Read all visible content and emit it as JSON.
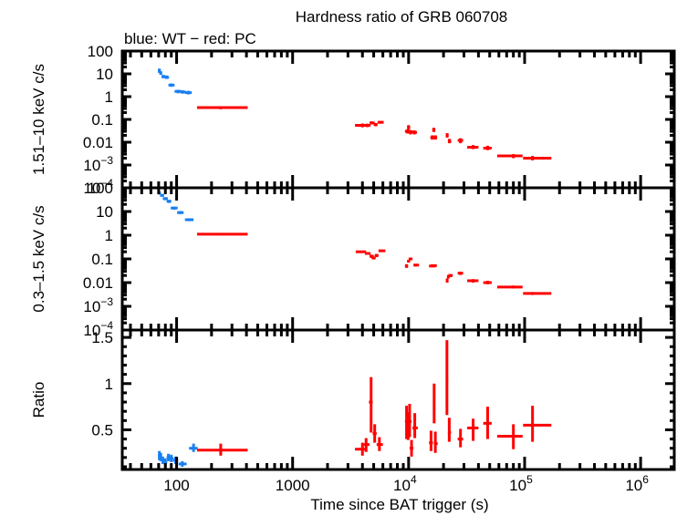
{
  "chart_data": {
    "type": "scatter",
    "title": "Hardness ratio of GRB 060708",
    "subtitle": "blue: WT − red: PC",
    "xlabel": "Time since BAT trigger (s)",
    "xscale": "log",
    "xlim": [
      34,
      1950000
    ],
    "xticks": [
      {
        "value": 100,
        "label": "100"
      },
      {
        "value": 1000,
        "label": "1000"
      },
      {
        "value": 10000,
        "label": "10",
        "sup": "4"
      },
      {
        "value": 100000,
        "label": "10",
        "sup": "5"
      },
      {
        "value": 1000000,
        "label": "10",
        "sup": "6"
      }
    ],
    "colors": {
      "WT": "#1a80f0",
      "PC": "#ff0000",
      "axes": "#000000"
    },
    "panels": [
      {
        "id": "hard",
        "ylabel": "1.51–10 keV c/s",
        "yscale": "log",
        "ylim": [
          0.0001,
          100
        ],
        "yticks": [
          {
            "value": 100,
            "label": "100"
          },
          {
            "value": 10,
            "label": "10"
          },
          {
            "value": 1,
            "label": "1"
          },
          {
            "value": 0.1,
            "label": "0.1"
          },
          {
            "value": 0.01,
            "label": "0.01"
          },
          {
            "value": 0.001,
            "label": "10",
            "sup": "−3"
          },
          {
            "value": 0.0001,
            "label": "10",
            "sup": "−4"
          }
        ],
        "series": [
          {
            "name": "WT",
            "points": [
              [
                71,
                14,
                69,
                73,
                11,
                17
              ],
              [
                73,
                11,
                71,
                75,
                9,
                13
              ],
              [
                77,
                7.5,
                74,
                80,
                6.5,
                9
              ],
              [
                82,
                7,
                79,
                86,
                6,
                8.5
              ],
              [
                90,
                3.2,
                85,
                96,
                2.7,
                3.8
              ],
              [
                103,
                1.7,
                96,
                110,
                1.4,
                2.0
              ],
              [
                113,
                1.6,
                108,
                120,
                1.35,
                1.9
              ],
              [
                126,
                1.5,
                118,
                135,
                1.25,
                1.8
              ]
            ]
          },
          {
            "name": "PC",
            "points": [
              [
                240,
                0.33,
                150,
                410,
                0.28,
                0.38
              ],
              [
                4000,
                0.055,
                3450,
                4300,
                0.045,
                0.066
              ],
              [
                4400,
                0.055,
                4200,
                4700,
                0.046,
                0.065
              ],
              [
                4800,
                0.07,
                4600,
                5100,
                0.06,
                0.082
              ],
              [
                5200,
                0.06,
                5000,
                5400,
                0.05,
                0.07
              ],
              [
                5700,
                0.075,
                5400,
                6100,
                0.065,
                0.085
              ],
              [
                9800,
                0.03,
                9300,
                10300,
                0.024,
                0.037
              ],
              [
                10000,
                0.045,
                9700,
                10300,
                0.036,
                0.056
              ],
              [
                10400,
                0.028,
                10000,
                11000,
                0.022,
                0.034
              ],
              [
                11200,
                0.027,
                10800,
                11800,
                0.022,
                0.033
              ],
              [
                16000,
                0.016,
                15400,
                16600,
                0.013,
                0.02
              ],
              [
                16500,
                0.035,
                16000,
                17000,
                0.028,
                0.043
              ],
              [
                17000,
                0.016,
                16500,
                17600,
                0.013,
                0.02
              ],
              [
                21500,
                0.02,
                20900,
                22100,
                0.016,
                0.025
              ],
              [
                22500,
                0.011,
                21800,
                23300,
                0.009,
                0.014
              ],
              [
                28000,
                0.012,
                26500,
                29500,
                0.009,
                0.015
              ],
              [
                36000,
                0.006,
                32000,
                40000,
                0.005,
                0.0075
              ],
              [
                48000,
                0.0055,
                44000,
                52000,
                0.0045,
                0.007
              ],
              [
                80000,
                0.0025,
                58000,
                96000,
                0.002,
                0.003
              ],
              [
                117000,
                0.002,
                97000,
                170000,
                0.0016,
                0.0025
              ]
            ]
          }
        ]
      },
      {
        "id": "soft",
        "ylabel": "0.3–1.5 keV c/s",
        "yscale": "log",
        "ylim": [
          0.0001,
          100
        ],
        "yticks": [
          {
            "value": 100,
            "label": "100"
          },
          {
            "value": 10,
            "label": "10"
          },
          {
            "value": 1,
            "label": "1"
          },
          {
            "value": 0.1,
            "label": "0.1"
          },
          {
            "value": 0.01,
            "label": "0.01"
          },
          {
            "value": 0.001,
            "label": "10",
            "sup": "−3"
          },
          {
            "value": 0.0001,
            "label": "10",
            "sup": "−4"
          }
        ],
        "series": [
          {
            "name": "WT",
            "points": [
              [
                71,
                60,
                69,
                73,
                52,
                70
              ],
              [
                75,
                48,
                72,
                78,
                42,
                55
              ],
              [
                80,
                35,
                76,
                84,
                30,
                40
              ],
              [
                86,
                27,
                82,
                90,
                23,
                31
              ],
              [
                95,
                14,
                89,
                102,
                12,
                16
              ],
              [
                108,
                9,
                101,
                115,
                7.8,
                10.5
              ],
              [
                128,
                4.5,
                118,
                140,
                3.9,
                5.2
              ]
            ]
          },
          {
            "name": "PC",
            "points": [
              [
                240,
                1.1,
                150,
                410,
                1.0,
                1.25
              ],
              [
                4000,
                0.2,
                3500,
                4300,
                0.18,
                0.22
              ],
              [
                4400,
                0.17,
                4200,
                4700,
                0.15,
                0.19
              ],
              [
                4800,
                0.13,
                4600,
                5000,
                0.11,
                0.15
              ],
              [
                5000,
                0.11,
                4800,
                5200,
                0.095,
                0.125
              ],
              [
                5300,
                0.14,
                5100,
                5500,
                0.12,
                0.16
              ],
              [
                5800,
                0.22,
                5500,
                6300,
                0.2,
                0.24
              ],
              [
                9600,
                0.05,
                9300,
                9900,
                0.042,
                0.06
              ],
              [
                10000,
                0.08,
                9700,
                10300,
                0.07,
                0.09
              ],
              [
                10400,
                0.1,
                10000,
                10800,
                0.09,
                0.11
              ],
              [
                11500,
                0.055,
                11000,
                12300,
                0.048,
                0.062
              ],
              [
                16000,
                0.05,
                15000,
                17000,
                0.045,
                0.055
              ],
              [
                16500,
                0.052,
                15500,
                17500,
                0.047,
                0.057
              ],
              [
                21500,
                0.012,
                21000,
                22000,
                0.01,
                0.015
              ],
              [
                22000,
                0.018,
                21500,
                22500,
                0.015,
                0.021
              ],
              [
                23000,
                0.02,
                22000,
                24000,
                0.017,
                0.023
              ],
              [
                28000,
                0.025,
                26500,
                29500,
                0.021,
                0.029
              ],
              [
                36000,
                0.012,
                32000,
                40000,
                0.01,
                0.014
              ],
              [
                48000,
                0.01,
                44000,
                52000,
                0.0085,
                0.012
              ],
              [
                80000,
                0.0065,
                58000,
                96000,
                0.0057,
                0.0075
              ],
              [
                117000,
                0.0035,
                97000,
                170000,
                0.003,
                0.004
              ]
            ]
          }
        ]
      },
      {
        "id": "ratio",
        "ylabel": "Ratio",
        "yscale": "linear",
        "ylim": [
          0.07,
          1.58
        ],
        "yticks": [
          {
            "value": 1.5,
            "label": "1.5"
          },
          {
            "value": 1,
            "label": "1"
          },
          {
            "value": 0.5,
            "label": "0.5"
          }
        ],
        "series": [
          {
            "name": "WT",
            "points": [
              [
                71,
                0.22,
                69,
                73,
                0.17,
                0.27
              ],
              [
                73,
                0.2,
                71,
                75,
                0.16,
                0.25
              ],
              [
                76,
                0.17,
                74,
                79,
                0.13,
                0.21
              ],
              [
                80,
                0.15,
                77,
                83,
                0.11,
                0.19
              ],
              [
                85,
                0.2,
                82,
                89,
                0.16,
                0.24
              ],
              [
                90,
                0.19,
                86,
                94,
                0.15,
                0.23
              ],
              [
                98,
                0.17,
                93,
                103,
                0.13,
                0.21
              ],
              [
                112,
                0.13,
                104,
                122,
                0.1,
                0.16
              ],
              [
                140,
                0.3,
                128,
                152,
                0.26,
                0.35
              ]
            ]
          },
          {
            "name": "PC",
            "points": [
              [
                240,
                0.28,
                150,
                410,
                0.22,
                0.35
              ],
              [
                4000,
                0.29,
                3450,
                4300,
                0.22,
                0.36
              ],
              [
                4300,
                0.34,
                4100,
                4600,
                0.26,
                0.41
              ],
              [
                4750,
                0.8,
                4550,
                4900,
                0.47,
                1.07
              ],
              [
                5100,
                0.46,
                4900,
                5300,
                0.36,
                0.56
              ],
              [
                5600,
                0.34,
                5300,
                6000,
                0.27,
                0.42
              ],
              [
                9600,
                0.59,
                9300,
                9900,
                0.4,
                0.76
              ],
              [
                9900,
                0.52,
                9600,
                10200,
                0.39,
                0.69
              ],
              [
                10200,
                0.59,
                9900,
                10600,
                0.42,
                0.78
              ],
              [
                10600,
                0.3,
                10200,
                11000,
                0.21,
                0.39
              ],
              [
                11300,
                0.52,
                10800,
                12000,
                0.41,
                0.68
              ],
              [
                15600,
                0.36,
                15000,
                16200,
                0.27,
                0.49
              ],
              [
                16600,
                0.85,
                16200,
                17000,
                0.57,
                1.0
              ],
              [
                17000,
                0.35,
                16500,
                17800,
                0.25,
                0.48
              ],
              [
                21400,
                1.04,
                21000,
                21900,
                0.66,
                1.47
              ],
              [
                22400,
                0.47,
                21800,
                23200,
                0.37,
                0.63
              ],
              [
                28000,
                0.4,
                26500,
                29500,
                0.31,
                0.51
              ],
              [
                36000,
                0.52,
                32000,
                40000,
                0.38,
                0.62
              ],
              [
                48000,
                0.57,
                44000,
                52000,
                0.4,
                0.75
              ],
              [
                80000,
                0.43,
                58000,
                96000,
                0.29,
                0.56
              ],
              [
                117000,
                0.55,
                97000,
                170000,
                0.37,
                0.76
              ]
            ]
          }
        ]
      }
    ]
  }
}
